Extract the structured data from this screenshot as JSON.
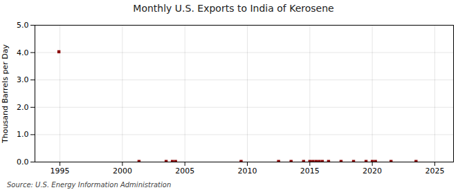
{
  "chart_data": {
    "type": "scatter",
    "title": "Monthly U.S. Exports to India of Kerosene",
    "ylabel": "Thousand Barrels per Day",
    "annotation": "Source: U.S. Energy Information Administration",
    "x": [
      1994.917,
      2001.33,
      2003.5,
      2004.0,
      2004.25,
      2009.5,
      2012.5,
      2013.5,
      2014.5,
      2015.0,
      2015.25,
      2015.5,
      2015.75,
      2016.0,
      2016.5,
      2017.5,
      2018.5,
      2019.5,
      2020.0,
      2020.25,
      2021.5,
      2023.5
    ],
    "values": [
      4.03,
      0.02,
      0.02,
      0.02,
      0.02,
      0.02,
      0.02,
      0.02,
      0.02,
      0.02,
      0.02,
      0.02,
      0.02,
      0.02,
      0.02,
      0.02,
      0.02,
      0.02,
      0.02,
      0.02,
      0.02,
      0.02
    ],
    "color": "#8b0000",
    "marker": "square",
    "xlim": [
      1993.0,
      2026.5
    ],
    "ylim": [
      0.0,
      5.0
    ],
    "xticks": [
      1995,
      2000,
      2005,
      2010,
      2015,
      2020,
      2025
    ],
    "yticks": [
      {
        "value": 0.0,
        "label": "0.0"
      },
      {
        "value": 1.0,
        "label": "1.0"
      },
      {
        "value": 2.0,
        "label": "2.0"
      },
      {
        "value": 3.0,
        "label": "3.0"
      },
      {
        "value": 4.0,
        "label": "4.0"
      },
      {
        "value": 5.0,
        "label": "5.0"
      }
    ],
    "grid": true
  }
}
